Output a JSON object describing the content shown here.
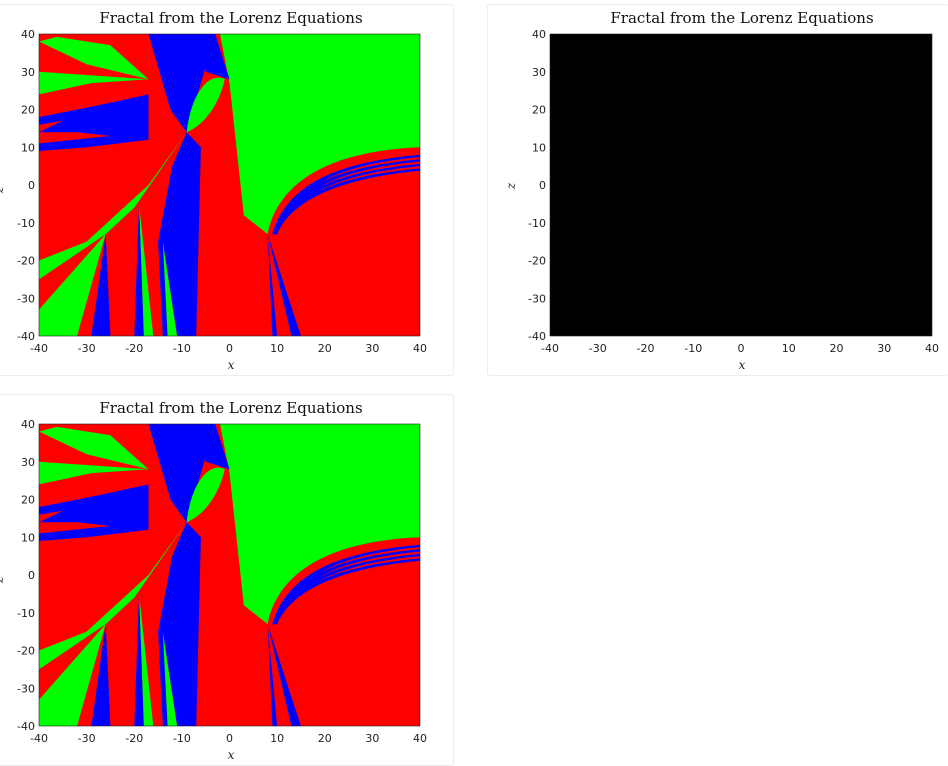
{
  "chart_data": [
    {
      "type": "heatmap",
      "title": "Fractal from the Lorenz Equations",
      "xlabel": "x",
      "ylabel": "z",
      "xlim": [
        -40,
        40
      ],
      "ylim": [
        -40,
        40
      ],
      "xticks": [
        -40,
        -30,
        -20,
        -10,
        0,
        10,
        20,
        30,
        40
      ],
      "yticks": [
        40,
        30,
        20,
        10,
        0,
        -10,
        -20,
        -30,
        -40
      ],
      "colors": [
        "#ff0000",
        "#00ff00",
        "#0000ff"
      ],
      "render": "fractal"
    },
    {
      "type": "heatmap",
      "title": "Fractal from the Lorenz Equations",
      "xlabel": "x",
      "ylabel": "z",
      "xlim": [
        -40,
        40
      ],
      "ylim": [
        -40,
        40
      ],
      "xticks": [
        -40,
        -30,
        -20,
        -10,
        0,
        10,
        20,
        30,
        40
      ],
      "yticks": [
        40,
        30,
        20,
        10,
        0,
        -10,
        -20,
        -30,
        -40
      ],
      "colors": [
        "#000000"
      ],
      "render": "black"
    },
    {
      "type": "heatmap",
      "title": "Fractal from the Lorenz Equations",
      "xlabel": "x",
      "ylabel": "z",
      "xlim": [
        -40,
        40
      ],
      "ylim": [
        -40,
        40
      ],
      "xticks": [
        -40,
        -30,
        -20,
        -10,
        0,
        10,
        20,
        30,
        40
      ],
      "yticks": [
        40,
        30,
        20,
        10,
        0,
        -10,
        -20,
        -30,
        -40
      ],
      "colors": [
        "#ff0000",
        "#00ff00",
        "#0000ff"
      ],
      "render": "fractal"
    }
  ]
}
